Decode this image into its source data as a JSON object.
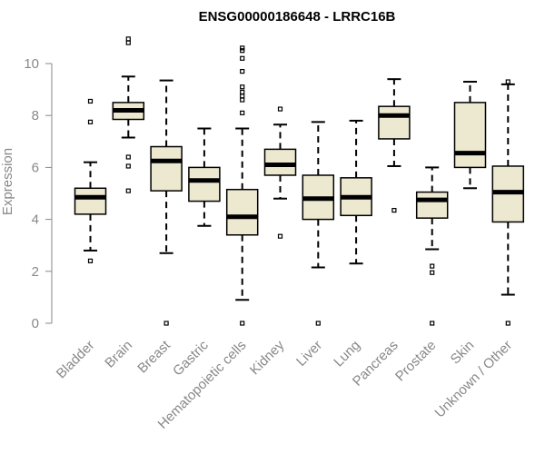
{
  "chart_data": {
    "type": "boxplot",
    "title": "ENSG00000186648 - LRRC16B",
    "xlabel": "",
    "ylabel": "Expression",
    "ylim": [
      0,
      10
    ],
    "yticks": [
      0,
      2,
      4,
      6,
      8,
      10
    ],
    "grid": false,
    "box_color": "#ede8d0",
    "categories": [
      "Bladder",
      "Brain",
      "Breast",
      "Gastric",
      "Hematopoietic cells",
      "Kidney",
      "Liver",
      "Lung",
      "Pancreas",
      "Prostate",
      "Skin",
      "Unknown / Other"
    ],
    "boxes": [
      {
        "q1": 4.2,
        "median": 4.85,
        "q3": 5.2,
        "lower": 2.8,
        "upper": 6.2,
        "outliers": [
          2.4,
          7.75,
          8.55
        ]
      },
      {
        "q1": 7.85,
        "median": 8.2,
        "q3": 8.5,
        "lower": 7.15,
        "upper": 9.5,
        "outliers": [
          5.1,
          6.05,
          6.4,
          10.8,
          10.95
        ]
      },
      {
        "q1": 5.1,
        "median": 6.25,
        "q3": 6.8,
        "lower": 2.7,
        "upper": 9.35,
        "outliers": [
          0
        ]
      },
      {
        "q1": 4.7,
        "median": 5.5,
        "q3": 6.0,
        "lower": 3.75,
        "upper": 7.5,
        "outliers": []
      },
      {
        "q1": 3.4,
        "median": 4.1,
        "q3": 5.15,
        "lower": 0.9,
        "upper": 7.5,
        "outliers": [
          0,
          8.1,
          8.6,
          8.75,
          8.9,
          9.1,
          9.7,
          10.2,
          10.5,
          10.6
        ]
      },
      {
        "q1": 5.7,
        "median": 6.1,
        "q3": 6.7,
        "lower": 4.8,
        "upper": 7.65,
        "outliers": [
          3.35,
          8.25
        ]
      },
      {
        "q1": 4.0,
        "median": 4.8,
        "q3": 5.7,
        "lower": 2.15,
        "upper": 7.75,
        "outliers": [
          0
        ]
      },
      {
        "q1": 4.15,
        "median": 4.85,
        "q3": 5.6,
        "lower": 2.3,
        "upper": 7.8,
        "outliers": []
      },
      {
        "q1": 7.1,
        "median": 8.0,
        "q3": 8.35,
        "lower": 6.05,
        "upper": 9.4,
        "outliers": [
          4.35
        ]
      },
      {
        "q1": 4.05,
        "median": 4.75,
        "q3": 5.05,
        "lower": 2.85,
        "upper": 6.0,
        "outliers": [
          0,
          1.95,
          2.2
        ]
      },
      {
        "q1": 6.0,
        "median": 6.55,
        "q3": 8.5,
        "lower": 5.2,
        "upper": 9.3,
        "outliers": []
      },
      {
        "q1": 3.9,
        "median": 5.05,
        "q3": 6.05,
        "lower": 1.1,
        "upper": 9.2,
        "outliers": [
          0,
          9.3
        ]
      }
    ]
  }
}
